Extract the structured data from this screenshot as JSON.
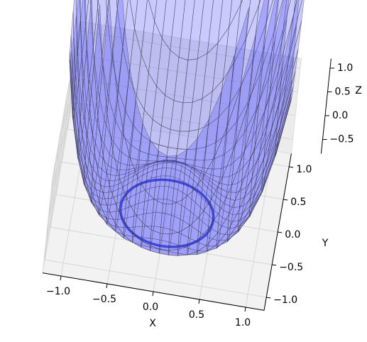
{
  "chart_data": {
    "type": "surface3d",
    "x_label": "X",
    "y_label": "Y",
    "z_label": "Z",
    "xlim": [
      -1.2,
      1.2
    ],
    "ylim": [
      -1.2,
      1.2
    ],
    "zlim": [
      -0.8,
      1.2
    ],
    "xticks": [
      {
        "value": -1,
        "label": "−1.0"
      },
      {
        "value": -0.5,
        "label": "−0.5"
      },
      {
        "value": 0,
        "label": "0.0"
      },
      0.5,
      {
        "value": 1,
        "label": "1.0"
      }
    ],
    "yticks": [
      {
        "value": -1,
        "label": "−1.0"
      },
      {
        "value": -0.5,
        "label": "−0.5"
      },
      {
        "value": 0,
        "label": "0.0"
      },
      0.5,
      {
        "value": 1,
        "label": "1.0"
      }
    ],
    "zticks": [
      {
        "value": -0.5,
        "label": "−0.5"
      },
      {
        "value": 0,
        "label": "0.0"
      },
      0.5,
      {
        "value": 1,
        "label": "1.0"
      }
    ],
    "surface_color": "#5a5aff",
    "grid": true
  }
}
